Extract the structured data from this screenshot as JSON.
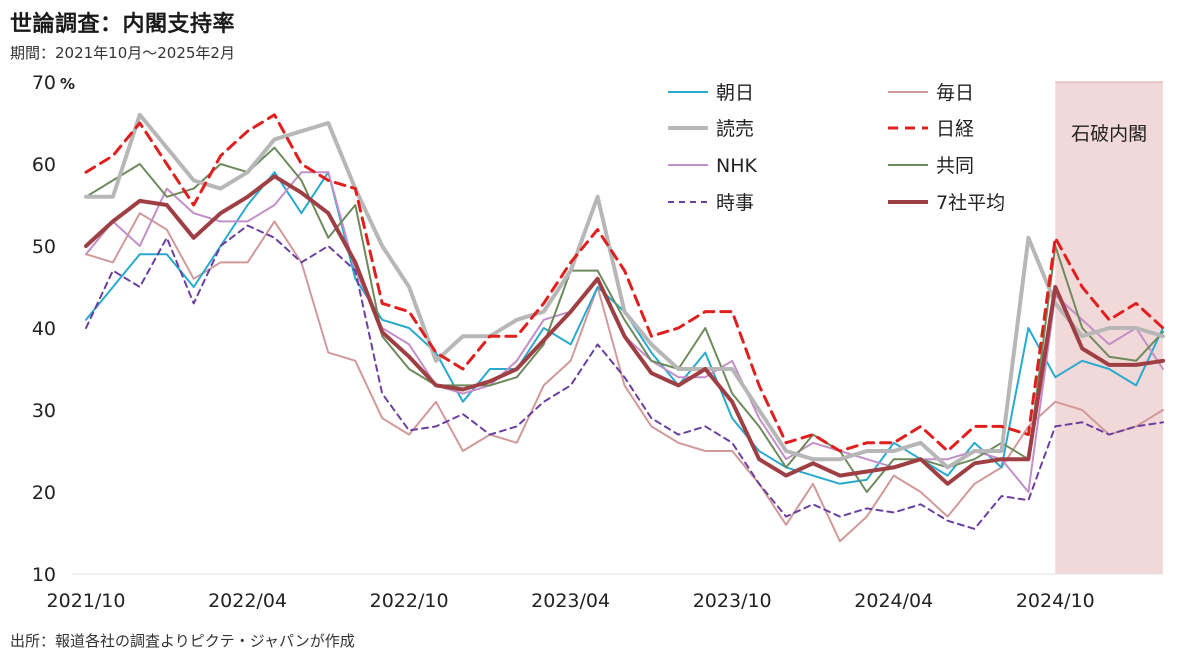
{
  "title": "世論調査：内閣支持率",
  "subtitle": "期間：2021年10月～2025年2月",
  "source": "出所：報道各社の調査よりピクテ・ジャパンが作成",
  "chart_data": {
    "type": "line",
    "unit_label": "%",
    "y_tick_label_format": "70 %",
    "ylim": [
      10,
      70
    ],
    "yticks": [
      10,
      20,
      30,
      40,
      50,
      60,
      70
    ],
    "x": [
      "2021/10",
      "2021/11",
      "2021/12",
      "2022/01",
      "2022/02",
      "2022/03",
      "2022/04",
      "2022/05",
      "2022/06",
      "2022/07",
      "2022/08",
      "2022/09",
      "2022/10",
      "2022/11",
      "2022/12",
      "2023/01",
      "2023/02",
      "2023/03",
      "2023/04",
      "2023/05",
      "2023/06",
      "2023/07",
      "2023/08",
      "2023/09",
      "2023/10",
      "2023/11",
      "2023/12",
      "2024/01",
      "2024/02",
      "2024/03",
      "2024/04",
      "2024/05",
      "2024/06",
      "2024/07",
      "2024/08",
      "2024/09",
      "2024/10",
      "2024/11",
      "2024/12",
      "2025/01",
      "2025/02"
    ],
    "x_tick_labels": [
      "2021/10",
      "2022/04",
      "2022/10",
      "2023/04",
      "2023/10",
      "2024/04",
      "2024/10"
    ],
    "grid": false,
    "legend_position": "top-right",
    "annotation": {
      "label": "石破内閣",
      "x_start": "2024/10",
      "x_end": "2025/02",
      "color": "#f2d9d9"
    },
    "series": [
      {
        "name": "朝日",
        "color": "#2aa9cf",
        "dash": "solid",
        "width": 2,
        "values": [
          41,
          45,
          49,
          49,
          45,
          50,
          55,
          59,
          54,
          59,
          46,
          41,
          40,
          37,
          31,
          35,
          35,
          40,
          38,
          45,
          42,
          37,
          33,
          37,
          29,
          25,
          23,
          22,
          21,
          21.5,
          26,
          24,
          22,
          26,
          23,
          40,
          34,
          36,
          35,
          33,
          40
        ]
      },
      {
        "name": "毎日",
        "color": "#d19a9a",
        "dash": "solid",
        "width": 2,
        "values": [
          49,
          48,
          54,
          52,
          46,
          48,
          48,
          53,
          48,
          37,
          36,
          29,
          27,
          31,
          25,
          27,
          26,
          33,
          36,
          45,
          33,
          28,
          26,
          25,
          25,
          21,
          16,
          21,
          14,
          17,
          22,
          20,
          17,
          21,
          23,
          28,
          31,
          30,
          27,
          28,
          30
        ]
      },
      {
        "name": "読売",
        "color": "#b7b7b7",
        "dash": "solid",
        "width": 4,
        "values": [
          56,
          56,
          66,
          62,
          58,
          57,
          59,
          63,
          64,
          65,
          57,
          50,
          45,
          36,
          39,
          39,
          41,
          42,
          47,
          56,
          42,
          38,
          35,
          35,
          35,
          30,
          25,
          24,
          24,
          25,
          25,
          26,
          23,
          25,
          25,
          51,
          43,
          39,
          40,
          40,
          39
        ]
      },
      {
        "name": "日経",
        "color": "#e0201e",
        "dash": "dash",
        "width": 3,
        "values": [
          59,
          61,
          65,
          60,
          55,
          61,
          64,
          66,
          60,
          58,
          57,
          43,
          42,
          37,
          35,
          39,
          39,
          43,
          48,
          52,
          47,
          39,
          40,
          42,
          42,
          33,
          26,
          27,
          25,
          26,
          26,
          28,
          25,
          28,
          28,
          27,
          51,
          45,
          41,
          43,
          40
        ]
      },
      {
        "name": "NHK",
        "color": "#c28fc8",
        "dash": "solid",
        "width": 2,
        "values": [
          49,
          53,
          50,
          57,
          54,
          53,
          53,
          55,
          59,
          59,
          47,
          40,
          38,
          33,
          32,
          33,
          36,
          41,
          42,
          46,
          39,
          36,
          34,
          34,
          36,
          29,
          24,
          26,
          25,
          24,
          23,
          24,
          24,
          25,
          24,
          20,
          44,
          41,
          38,
          40,
          35
        ]
      },
      {
        "name": "共同",
        "color": "#6e8a5c",
        "dash": "solid",
        "width": 2,
        "values": [
          56,
          58,
          60,
          56,
          57,
          60,
          59,
          62,
          58,
          51,
          55,
          39,
          35,
          33,
          33,
          33,
          34,
          38,
          47,
          47,
          41,
          36,
          35,
          40,
          32,
          28,
          23,
          27,
          25,
          20,
          24,
          24,
          23,
          24,
          26,
          24,
          50,
          40,
          36.5,
          36,
          39.5
        ]
      },
      {
        "name": "時事",
        "color": "#6b3fa0",
        "dash": "dash",
        "width": 2,
        "values": [
          40,
          47,
          45,
          51,
          43,
          50,
          52.5,
          51,
          48,
          50,
          47,
          32,
          27.5,
          28,
          29.5,
          27,
          28,
          31,
          33,
          38,
          34,
          29,
          27,
          28,
          26,
          21,
          17,
          18.5,
          17,
          18,
          17.5,
          18.5,
          16.5,
          15.5,
          19.5,
          19,
          28,
          28.5,
          27,
          28,
          28.5
        ]
      },
      {
        "name": "7社平均",
        "color": "#9e3f44",
        "dash": "solid",
        "width": 4,
        "values": [
          50,
          53,
          55.5,
          55,
          51,
          54,
          56,
          58.5,
          56.5,
          54,
          48,
          39.5,
          36.5,
          33,
          32.5,
          33.5,
          35,
          38.5,
          42,
          46,
          39,
          34.5,
          33,
          35,
          31,
          24,
          22,
          23.5,
          22,
          22.5,
          23,
          24,
          21,
          23.5,
          24,
          24,
          45,
          37.5,
          35.5,
          35.5,
          36
        ]
      }
    ]
  }
}
